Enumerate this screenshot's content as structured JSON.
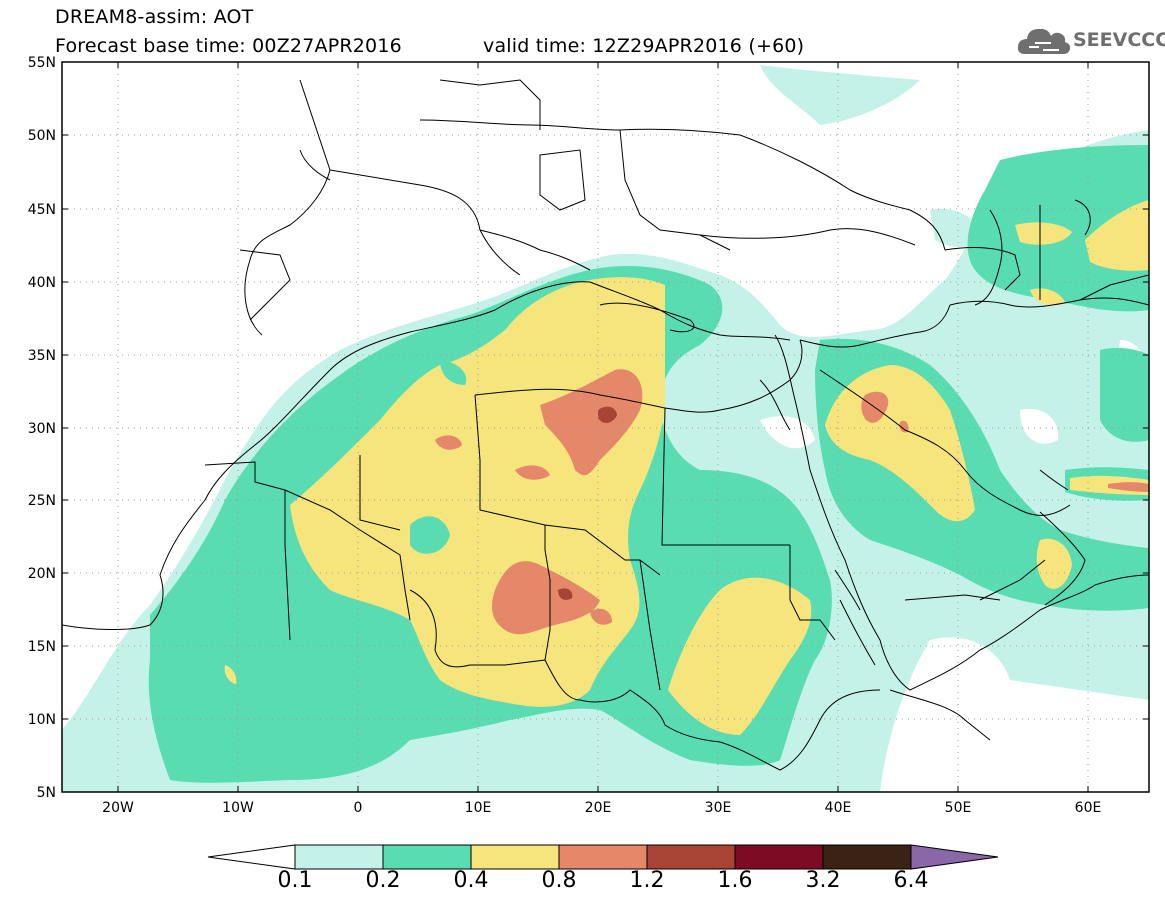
{
  "title": {
    "line1": "DREAM8-assim: AOT",
    "base_time": "Forecast base time: 00Z27APR2016",
    "valid_time": "valid time: 12Z29APR2016 (+60)"
  },
  "logo": {
    "text": "SEEVCCC",
    "icon": "cloud-icon"
  },
  "map": {
    "lat_labels": [
      "55N",
      "50N",
      "45N",
      "40N",
      "35N",
      "30N",
      "25N",
      "20N",
      "15N",
      "10N",
      "5N"
    ],
    "lon_labels": [
      "20W",
      "10W",
      "0",
      "10E",
      "20E",
      "30E",
      "40E",
      "50E",
      "60E"
    ]
  },
  "colorbar": {
    "labels": [
      "0.1",
      "0.2",
      "0.4",
      "0.8",
      "1.2",
      "1.6",
      "3.2",
      "6.4"
    ],
    "colors": [
      "#ffffff",
      "#c4f2e8",
      "#5adcb2",
      "#f5e57c",
      "#e5886a",
      "#a84434",
      "#7e0b24",
      "#3a2214",
      "#8a67a8"
    ]
  }
}
